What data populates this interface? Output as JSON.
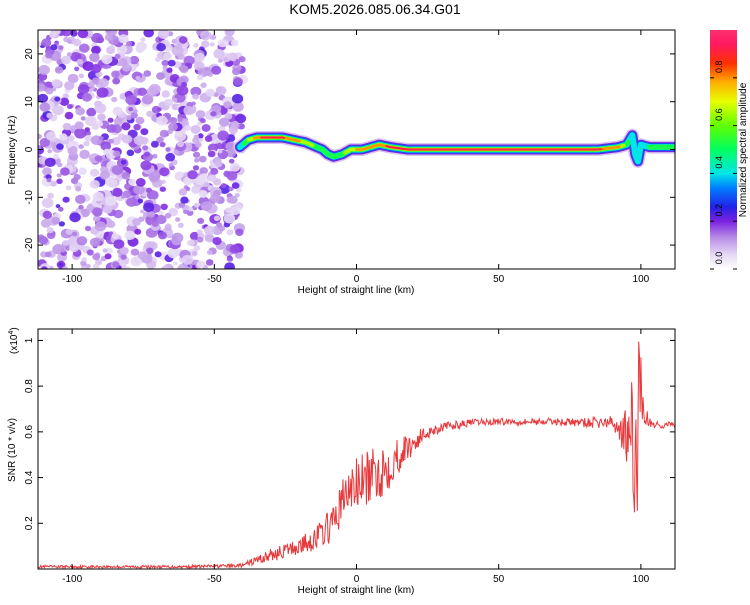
{
  "page_title": "KOM5.2026.085.06.34.G01",
  "chart_data": [
    {
      "type": "heatmap",
      "title": "KOM5.2026.085.06.34.G01",
      "xlabel": "Height of straight line (km)",
      "ylabel": "Frequency (Hz)",
      "xlim": [
        -112,
        112
      ],
      "ylim": [
        -25,
        25
      ],
      "xticks": [
        -100,
        -50,
        0,
        50,
        100
      ],
      "yticks": [
        -20,
        -10,
        0,
        10,
        20
      ],
      "noise_region": [
        -112,
        -40
      ],
      "ridge": {
        "x": [
          -41,
          -38,
          -35,
          -30,
          -26,
          -22,
          -18,
          -14,
          -12,
          -10,
          -8,
          -5,
          -2,
          2,
          5,
          8,
          12,
          18,
          25,
          40,
          55,
          70,
          85,
          92,
          95,
          97,
          98,
          99,
          100,
          103,
          108,
          112
        ],
        "freq": [
          0.5,
          2,
          2.5,
          2.5,
          2.5,
          2,
          1.5,
          0.5,
          0,
          -1,
          -1.5,
          -1,
          0,
          0,
          0.5,
          1,
          0.5,
          0,
          0,
          0,
          0,
          0,
          0,
          0.5,
          1,
          3,
          -1,
          -2.5,
          1,
          0.5,
          0.5,
          0.5
        ],
        "amplitude": [
          0.35,
          0.6,
          0.85,
          0.95,
          0.9,
          0.8,
          0.7,
          0.55,
          0.5,
          0.45,
          0.45,
          0.55,
          0.7,
          0.8,
          0.85,
          0.85,
          0.9,
          0.95,
          1.0,
          1.0,
          0.95,
          0.95,
          0.9,
          0.8,
          0.5,
          0.3,
          0.3,
          0.35,
          0.4,
          0.45,
          0.45,
          0.45
        ]
      },
      "colorbar": {
        "label": "Normalized spectral amplitude",
        "range": [
          0,
          1
        ],
        "ticks": [
          0.0,
          0.2,
          0.4,
          0.6,
          0.8
        ],
        "tick_labels": [
          "0.0",
          "0.2",
          "0.4",
          "0.6",
          "0.8"
        ]
      }
    },
    {
      "type": "line",
      "xlabel": "Height of straight line (km)",
      "ylabel": "SNR (10 * v/v)",
      "y_multiplier": "(x10",
      "y_multiplier_exp": "4",
      "y_multiplier_close": ")",
      "xlim": [
        -112,
        112
      ],
      "ylim": [
        0,
        1.05
      ],
      "xticks": [
        -100,
        -50,
        0,
        50,
        100
      ],
      "yticks": [
        0.2,
        0.4,
        0.6,
        0.8,
        1.0
      ],
      "series": [
        {
          "name": "SNR",
          "color": "#e8383b",
          "x": [
            -112,
            -60,
            -40,
            -35,
            -30,
            -25,
            -20,
            -15,
            -10,
            -8,
            -5,
            -2,
            0,
            5,
            10,
            15,
            20,
            25,
            30,
            40,
            50,
            60,
            70,
            80,
            90,
            92,
            94,
            96,
            97,
            98,
            99,
            100,
            101,
            103,
            106,
            112
          ],
          "y": [
            0.01,
            0.01,
            0.015,
            0.04,
            0.06,
            0.08,
            0.1,
            0.13,
            0.18,
            0.2,
            0.3,
            0.35,
            0.37,
            0.4,
            0.44,
            0.5,
            0.55,
            0.6,
            0.62,
            0.64,
            0.645,
            0.645,
            0.645,
            0.64,
            0.64,
            0.62,
            0.6,
            0.55,
            0.5,
            0.45,
            0.6,
            0.9,
            0.68,
            0.64,
            0.63,
            0.63
          ],
          "noise": [
            0.006,
            0.006,
            0.008,
            0.02,
            0.03,
            0.03,
            0.04,
            0.05,
            0.07,
            0.08,
            0.1,
            0.12,
            0.12,
            0.12,
            0.12,
            0.08,
            0.05,
            0.03,
            0.02,
            0.015,
            0.015,
            0.015,
            0.015,
            0.02,
            0.03,
            0.05,
            0.1,
            0.2,
            0.35,
            0.45,
            0.4,
            0.25,
            0.05,
            0.03,
            0.015,
            0.015
          ]
        }
      ]
    }
  ],
  "colors": {
    "axis": "#000000",
    "line": "#e8383b",
    "noise": "#9b5fd0"
  }
}
